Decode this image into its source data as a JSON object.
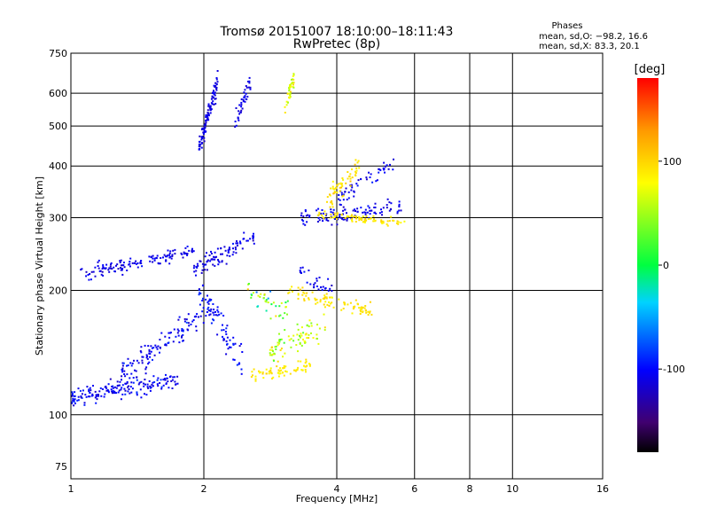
{
  "chart_data": {
    "type": "scatter",
    "title": "Tromsø 20151007 18:10:00–18:11:43",
    "subtitle": "RwPretec (8p)",
    "xlabel": "Frequency [MHz]",
    "ylabel": "Stationary phase Virtual Height [km]",
    "x_scale": "log",
    "y_scale": "log",
    "xlim": [
      1,
      16
    ],
    "ylim": [
      70,
      750
    ],
    "x_ticks": [
      1,
      2,
      4,
      6,
      8,
      10,
      16
    ],
    "x_tick_labels": [
      "1",
      "2",
      "4",
      "6",
      "8",
      "10",
      "16"
    ],
    "x_grid": [
      2,
      4,
      6,
      8,
      10
    ],
    "y_ticks": [
      75,
      100,
      200,
      300,
      400,
      500,
      600,
      750
    ],
    "y_tick_labels": [
      "75",
      "100",
      "200",
      "300",
      "400",
      "500",
      "600",
      "750"
    ],
    "y_grid": [
      100,
      200,
      300,
      400,
      500,
      600
    ],
    "grid": true,
    "legend": {
      "title": "Phases",
      "lines": [
        "mean, sd,O: −98.2, 16.6",
        "mean, sd,X:  83.3, 20.1"
      ],
      "placement": "top-right"
    },
    "colorbar": {
      "label": "[deg]",
      "min": -180,
      "max": 180,
      "ticks": [
        100,
        0,
        -100
      ],
      "tick_labels": [
        "100",
        "0",
        "-100"
      ]
    },
    "traces": [
      {
        "f_start": 1.0,
        "f_end": 1.75,
        "h_start": 110,
        "h_end": 122,
        "h_spread": 0.05,
        "phase": -105,
        "phase_sd": 18,
        "n": 170
      },
      {
        "f_start": 1.3,
        "f_end": 2.0,
        "h_start": 125,
        "h_end": 175,
        "h_spread": 0.07,
        "phase": -105,
        "phase_sd": 18,
        "n": 120
      },
      {
        "f_start": 1.05,
        "f_end": 1.9,
        "h_start": 220,
        "h_end": 248,
        "h_spread": 0.04,
        "phase": -110,
        "phase_sd": 12,
        "n": 130
      },
      {
        "f_start": 1.9,
        "f_end": 2.6,
        "h_start": 225,
        "h_end": 270,
        "h_spread": 0.05,
        "phase": -110,
        "phase_sd": 14,
        "n": 90
      },
      {
        "f_start": 1.95,
        "f_end": 2.45,
        "h_start": 200,
        "h_end": 135,
        "h_spread": 0.09,
        "phase": -100,
        "phase_sd": 18,
        "n": 80
      },
      {
        "f_start": 1.95,
        "f_end": 2.15,
        "h_start": 440,
        "h_end": 640,
        "h_spread": 0.06,
        "phase": -112,
        "phase_sd": 10,
        "n": 110
      },
      {
        "f_start": 2.35,
        "f_end": 2.55,
        "h_start": 500,
        "h_end": 640,
        "h_spread": 0.06,
        "phase": -110,
        "phase_sd": 10,
        "n": 40
      },
      {
        "f_start": 3.3,
        "f_end": 5.6,
        "h_start": 300,
        "h_end": 320,
        "h_spread": 0.05,
        "phase": -108,
        "phase_sd": 12,
        "n": 110
      },
      {
        "f_start": 4.0,
        "f_end": 5.5,
        "h_start": 335,
        "h_end": 415,
        "h_spread": 0.05,
        "phase": -105,
        "phase_sd": 14,
        "n": 50
      },
      {
        "f_start": 3.6,
        "f_end": 5.8,
        "h_start": 305,
        "h_end": 290,
        "h_spread": 0.02,
        "phase": 92,
        "phase_sd": 14,
        "n": 80
      },
      {
        "f_start": 3.8,
        "f_end": 4.5,
        "h_start": 330,
        "h_end": 400,
        "h_spread": 0.06,
        "phase": 95,
        "phase_sd": 15,
        "n": 60
      },
      {
        "f_start": 2.55,
        "f_end": 3.5,
        "h_start": 124,
        "h_end": 132,
        "h_spread": 0.04,
        "phase": 90,
        "phase_sd": 15,
        "n": 70
      },
      {
        "f_start": 2.8,
        "f_end": 3.8,
        "h_start": 140,
        "h_end": 165,
        "h_spread": 0.07,
        "phase": 60,
        "phase_sd": 40,
        "n": 80
      },
      {
        "f_start": 3.1,
        "f_end": 4.8,
        "h_start": 198,
        "h_end": 178,
        "h_spread": 0.04,
        "phase": 92,
        "phase_sd": 12,
        "n": 90
      },
      {
        "f_start": 2.5,
        "f_end": 3.1,
        "h_start": 195,
        "h_end": 180,
        "h_spread": 0.08,
        "phase": 20,
        "phase_sd": 90,
        "n": 40
      },
      {
        "f_start": 3.05,
        "f_end": 3.2,
        "h_start": 560,
        "h_end": 650,
        "h_spread": 0.05,
        "phase": 75,
        "phase_sd": 30,
        "n": 40
      },
      {
        "f_start": 3.3,
        "f_end": 3.9,
        "h_start": 220,
        "h_end": 200,
        "h_spread": 0.05,
        "phase": -108,
        "phase_sd": 12,
        "n": 30
      }
    ]
  }
}
